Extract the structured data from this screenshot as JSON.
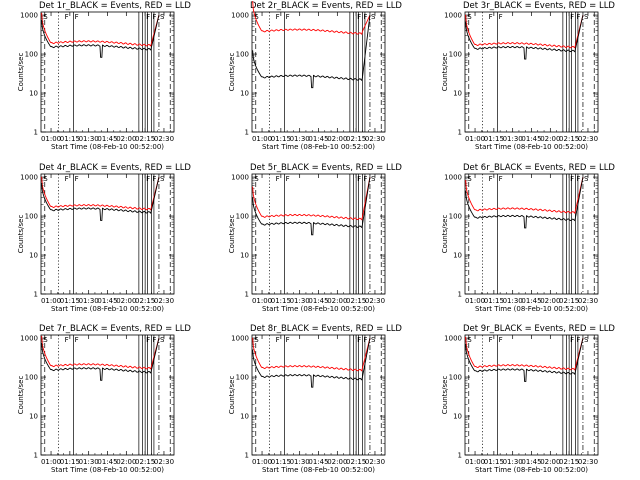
{
  "chart_data": [
    {
      "type": "line",
      "title": "Det 1r_BLACK = Events, RED = LLD",
      "xlabel": "Start Time (08-Feb-10 00:52:00)",
      "ylabel": "Counts/sec",
      "x_ticks": [
        "01:00",
        "01:15",
        "01:30",
        "01:45",
        "02:00",
        "02:15",
        "02:30"
      ],
      "y_ticks": [
        "1",
        "10",
        "100",
        "1000"
      ],
      "xlim_min": [
        0,
        106
      ],
      "ylim": [
        1,
        1200
      ],
      "y_scale": "log",
      "grid": false,
      "flags": [
        {
          "label": "S",
          "t": 1
        },
        {
          "label": "F",
          "t": 18
        },
        {
          "label": "F",
          "t": 26
        },
        {
          "label": "F",
          "t": 83
        },
        {
          "label": "F",
          "t": 88
        },
        {
          "label": "S",
          "t": 94
        }
      ],
      "series": [
        {
          "color": "#ff0000",
          "level": 190,
          "rise_end": 88
        },
        {
          "color": "#000000",
          "level": 150,
          "rise_end": 88
        }
      ]
    },
    {
      "type": "line",
      "title": "Det 2r_BLACK = Events, RED = LLD",
      "xlabel": "Start Time (08-Feb-10 00:52:00)",
      "ylabel": "Counts/sec",
      "x_ticks": [
        "01:00",
        "01:15",
        "01:30",
        "01:45",
        "02:00",
        "02:15",
        "02:30"
      ],
      "y_ticks": [
        "1",
        "10",
        "100",
        "1000"
      ],
      "xlim_min": [
        0,
        106
      ],
      "ylim": [
        1,
        1200
      ],
      "y_scale": "log",
      "grid": false,
      "flags": [
        {
          "label": "S",
          "t": 1
        },
        {
          "label": "F",
          "t": 18
        },
        {
          "label": "F",
          "t": 26
        },
        {
          "label": "F",
          "t": 83
        },
        {
          "label": "F",
          "t": 88
        },
        {
          "label": "S",
          "t": 94
        }
      ],
      "series": [
        {
          "color": "#ff0000",
          "level": 380,
          "rise_end": 88
        },
        {
          "color": "#000000",
          "level": 25,
          "rise_end": 88
        }
      ]
    },
    {
      "type": "line",
      "title": "Det 3r_BLACK = Events, RED = LLD",
      "xlabel": "Start Time (08-Feb-10 00:52:00)",
      "ylabel": "Counts/sec",
      "x_ticks": [
        "01:00",
        "01:15",
        "01:30",
        "01:45",
        "02:00",
        "02:15",
        "02:30"
      ],
      "y_ticks": [
        "1",
        "10",
        "100",
        "1000"
      ],
      "xlim_min": [
        0,
        106
      ],
      "ylim": [
        1,
        1200
      ],
      "y_scale": "log",
      "grid": false,
      "flags": [
        {
          "label": "S",
          "t": 1
        },
        {
          "label": "F",
          "t": 18
        },
        {
          "label": "F",
          "t": 26
        },
        {
          "label": "F",
          "t": 83
        },
        {
          "label": "F",
          "t": 88
        },
        {
          "label": "S",
          "t": 94
        }
      ],
      "series": [
        {
          "color": "#ff0000",
          "level": 170,
          "rise_end": 88
        },
        {
          "color": "#000000",
          "level": 135,
          "rise_end": 88
        }
      ]
    },
    {
      "type": "line",
      "title": "Det 4r_BLACK = Events, RED = LLD",
      "xlabel": "Start Time (08-Feb-10 00:52:00)",
      "ylabel": "Counts/sec",
      "x_ticks": [
        "01:00",
        "01:15",
        "01:30",
        "01:45",
        "02:00",
        "02:15",
        "02:30"
      ],
      "y_ticks": [
        "1",
        "10",
        "100",
        "1000"
      ],
      "xlim_min": [
        0,
        106
      ],
      "ylim": [
        1,
        1200
      ],
      "y_scale": "log",
      "grid": false,
      "flags": [
        {
          "label": "S",
          "t": 1
        },
        {
          "label": "F",
          "t": 18
        },
        {
          "label": "F",
          "t": 26
        },
        {
          "label": "F",
          "t": 83
        },
        {
          "label": "F",
          "t": 88
        },
        {
          "label": "S",
          "t": 94
        }
      ],
      "series": [
        {
          "color": "#ff0000",
          "level": 170,
          "rise_end": 88
        },
        {
          "color": "#000000",
          "level": 140,
          "rise_end": 88
        }
      ]
    },
    {
      "type": "line",
      "title": "Det 5r_BLACK = Events, RED = LLD",
      "xlabel": "Start Time (08-Feb-10 00:52:00)",
      "ylabel": "Counts/sec",
      "x_ticks": [
        "01:00",
        "01:15",
        "01:30",
        "01:45",
        "02:00",
        "02:15",
        "02:30"
      ],
      "y_ticks": [
        "1",
        "10",
        "100",
        "1000"
      ],
      "xlim_min": [
        0,
        106
      ],
      "ylim": [
        1,
        1200
      ],
      "y_scale": "log",
      "grid": false,
      "flags": [
        {
          "label": "S",
          "t": 1
        },
        {
          "label": "F",
          "t": 18
        },
        {
          "label": "F",
          "t": 26
        },
        {
          "label": "F",
          "t": 83
        },
        {
          "label": "F",
          "t": 88
        },
        {
          "label": "S",
          "t": 94
        }
      ],
      "series": [
        {
          "color": "#ff0000",
          "level": 95,
          "rise_end": 88
        },
        {
          "color": "#000000",
          "level": 60,
          "rise_end": 88
        }
      ]
    },
    {
      "type": "line",
      "title": "Det 6r_BLACK = Events, RED = LLD",
      "xlabel": "Start Time (08-Feb-10 00:52:00)",
      "ylabel": "Counts/sec",
      "x_ticks": [
        "01:00",
        "01:15",
        "01:30",
        "01:45",
        "02:00",
        "02:15",
        "02:30"
      ],
      "y_ticks": [
        "1",
        "10",
        "100",
        "1000"
      ],
      "xlim_min": [
        0,
        106
      ],
      "ylim": [
        1,
        1200
      ],
      "y_scale": "log",
      "grid": false,
      "flags": [
        {
          "label": "S",
          "t": 1
        },
        {
          "label": "F",
          "t": 18
        },
        {
          "label": "F",
          "t": 26
        },
        {
          "label": "F",
          "t": 83
        },
        {
          "label": "F",
          "t": 88
        },
        {
          "label": "S",
          "t": 94
        }
      ],
      "series": [
        {
          "color": "#ff0000",
          "level": 140,
          "rise_end": 88
        },
        {
          "color": "#000000",
          "level": 90,
          "rise_end": 88
        }
      ]
    },
    {
      "type": "line",
      "title": "Det 7r_BLACK = Events, RED = LLD",
      "xlabel": "Start Time (08-Feb-10 00:52:00)",
      "ylabel": "Counts/sec",
      "x_ticks": [
        "01:00",
        "01:15",
        "01:30",
        "01:45",
        "02:00",
        "02:15",
        "02:30"
      ],
      "y_ticks": [
        "1",
        "10",
        "100",
        "1000"
      ],
      "xlim_min": [
        0,
        106
      ],
      "ylim": [
        1,
        1200
      ],
      "y_scale": "log",
      "grid": false,
      "flags": [
        {
          "label": "S",
          "t": 1
        },
        {
          "label": "F",
          "t": 18
        },
        {
          "label": "F",
          "t": 26
        },
        {
          "label": "F",
          "t": 83
        },
        {
          "label": "F",
          "t": 88
        },
        {
          "label": "S",
          "t": 94
        }
      ],
      "series": [
        {
          "color": "#ff0000",
          "level": 190,
          "rise_end": 88
        },
        {
          "color": "#000000",
          "level": 150,
          "rise_end": 88
        }
      ]
    },
    {
      "type": "line",
      "title": "Det 8r_BLACK = Events, RED = LLD",
      "xlabel": "Start Time (08-Feb-10 00:52:00)",
      "ylabel": "Counts/sec",
      "x_ticks": [
        "01:00",
        "01:15",
        "01:30",
        "01:45",
        "02:00",
        "02:15",
        "02:30"
      ],
      "y_ticks": [
        "1",
        "10",
        "100",
        "1000"
      ],
      "xlim_min": [
        0,
        106
      ],
      "ylim": [
        1,
        1200
      ],
      "y_scale": "log",
      "grid": false,
      "flags": [
        {
          "label": "S",
          "t": 1
        },
        {
          "label": "F",
          "t": 18
        },
        {
          "label": "F",
          "t": 26
        },
        {
          "label": "F",
          "t": 83
        },
        {
          "label": "F",
          "t": 88
        },
        {
          "label": "S",
          "t": 94
        }
      ],
      "series": [
        {
          "color": "#ff0000",
          "level": 170,
          "rise_end": 88
        },
        {
          "color": "#000000",
          "level": 100,
          "rise_end": 88
        }
      ]
    },
    {
      "type": "line",
      "title": "Det 9r_BLACK = Events, RED = LLD",
      "xlabel": "Start Time (08-Feb-10 00:52:00)",
      "ylabel": "Counts/sec",
      "x_ticks": [
        "01:00",
        "01:15",
        "01:30",
        "01:45",
        "02:00",
        "02:15",
        "02:30"
      ],
      "y_ticks": [
        "1",
        "10",
        "100",
        "1000"
      ],
      "xlim_min": [
        0,
        106
      ],
      "ylim": [
        1,
        1200
      ],
      "y_scale": "log",
      "grid": false,
      "flags": [
        {
          "label": "S",
          "t": 1
        },
        {
          "label": "F",
          "t": 18
        },
        {
          "label": "F",
          "t": 26
        },
        {
          "label": "F",
          "t": 83
        },
        {
          "label": "F",
          "t": 88
        },
        {
          "label": "S",
          "t": 94
        }
      ],
      "series": [
        {
          "color": "#ff0000",
          "level": 180,
          "rise_end": 88
        },
        {
          "color": "#000000",
          "level": 140,
          "rise_end": 88
        }
      ]
    }
  ]
}
